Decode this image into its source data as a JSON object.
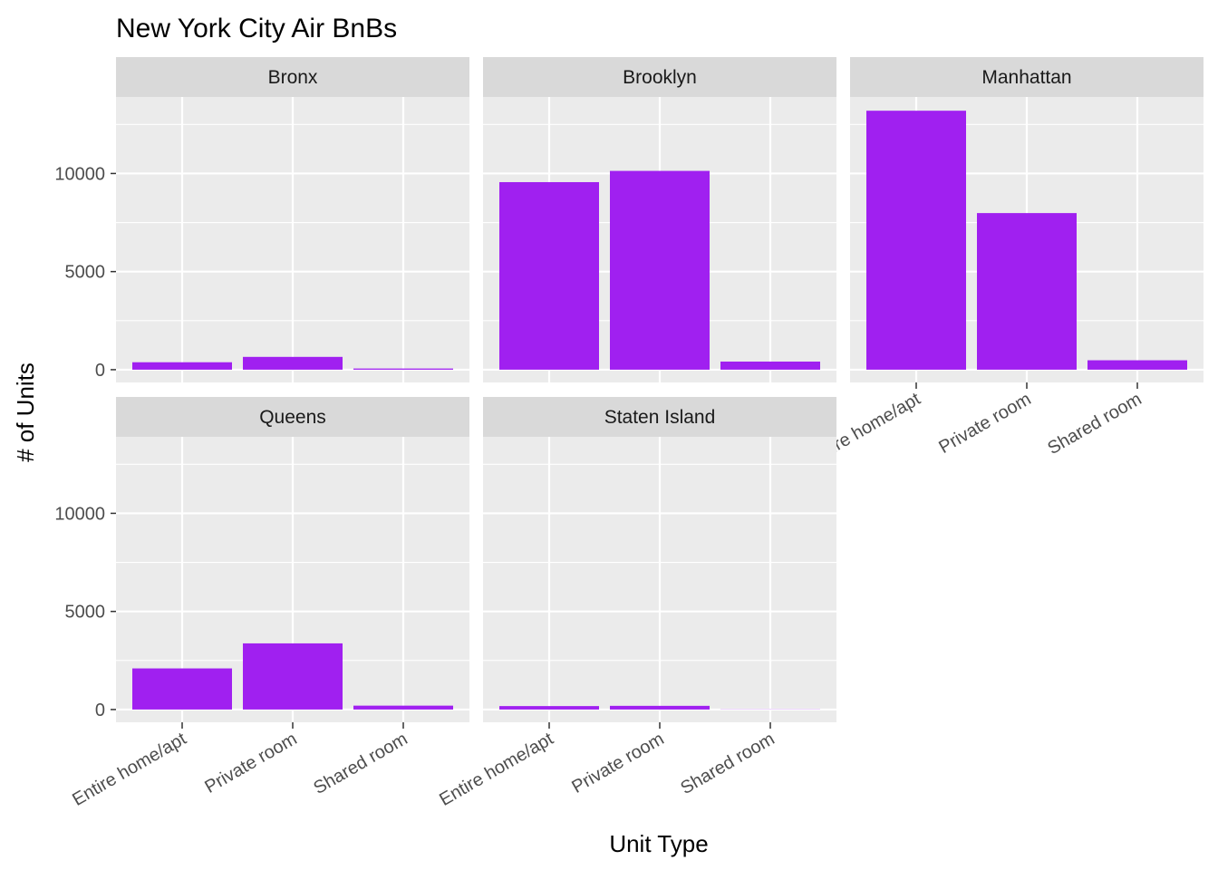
{
  "chart_data": {
    "type": "bar",
    "title": "New York City Air BnBs",
    "xlabel": "Unit Type",
    "ylabel": "# of Units",
    "categories": [
      "Entire home/apt",
      "Private room",
      "Shared room"
    ],
    "ylim": [
      -650,
      13900
    ],
    "y_ticks": [
      0,
      5000,
      10000
    ],
    "y_tick_labels": [
      "0",
      "5000",
      "10000"
    ],
    "grid": true,
    "legend": "none",
    "facets": [
      {
        "name": "Bronx",
        "values": [
          379,
          652,
          60
        ]
      },
      {
        "name": "Brooklyn",
        "values": [
          9559,
          10132,
          413
        ]
      },
      {
        "name": "Manhattan",
        "values": [
          13199,
          7982,
          480
        ]
      },
      {
        "name": "Queens",
        "values": [
          2096,
          3372,
          198
        ]
      },
      {
        "name": "Staten Island",
        "values": [
          176,
          188,
          9
        ]
      }
    ]
  },
  "colors": {
    "bar": "#a020f0",
    "panel_background": "#ebebeb",
    "strip_background": "#d9d9d9",
    "grid": "#ffffff",
    "tick": "#333333"
  }
}
